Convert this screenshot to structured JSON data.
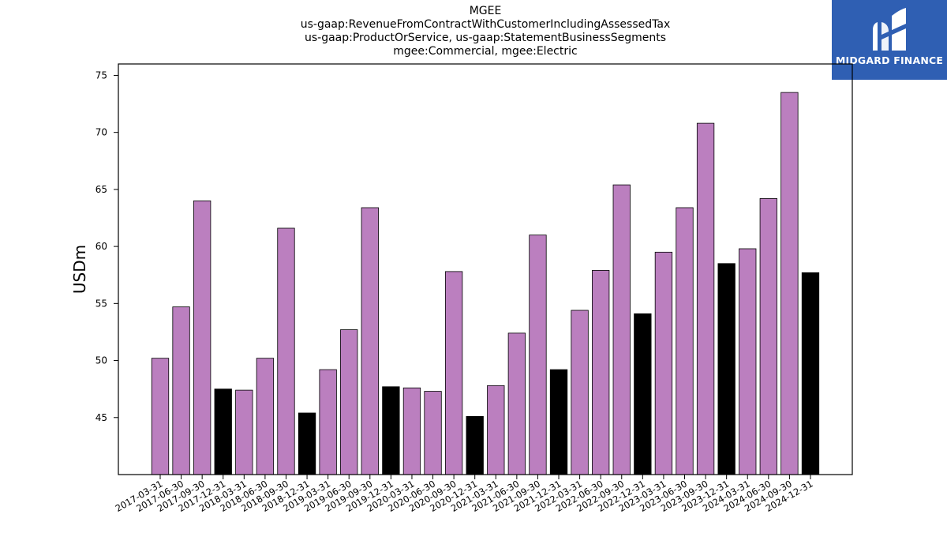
{
  "header": {
    "title_lines": [
      "MGEE",
      "us-gaap:RevenueFromContractWithCustomerIncludingAssessedTax",
      "us-gaap:ProductOrService, us-gaap:StatementBusinessSegments",
      "mgee:Commercial, mgee:Electric"
    ]
  },
  "logo": {
    "text": "MIDGARD FINANCE",
    "icon": "midgard-logo-icon",
    "background": "#2f5fb3"
  },
  "chart_data": {
    "type": "bar",
    "title": "MGEE\nus-gaap:RevenueFromContractWithCustomerIncludingAssessedTax\nus-gaap:ProductOrService, us-gaap:StatementBusinessSegments\nmgee:Commercial, mgee:Electric",
    "xlabel": "",
    "ylabel": "USDm",
    "ylim": [
      40,
      76
    ],
    "yticks": [
      45,
      50,
      55,
      60,
      65,
      70,
      75
    ],
    "grid": false,
    "colors": {
      "quarter": "#bb7fbf",
      "year_end": "#000000"
    },
    "categories": [
      "2017-03-31",
      "2017-06-30",
      "2017-09-30",
      "2017-12-31",
      "2018-03-31",
      "2018-06-30",
      "2018-09-30",
      "2018-12-31",
      "2019-03-31",
      "2019-06-30",
      "2019-09-30",
      "2019-12-31",
      "2020-03-31",
      "2020-06-30",
      "2020-09-30",
      "2020-12-31",
      "2021-03-31",
      "2021-06-30",
      "2021-09-30",
      "2021-12-31",
      "2022-03-31",
      "2022-06-30",
      "2022-09-30",
      "2022-12-31",
      "2023-03-31",
      "2023-06-30",
      "2023-09-30",
      "2023-12-31",
      "2024-03-31",
      "2024-06-30",
      "2024-09-30",
      "2024-12-31"
    ],
    "values": [
      50.2,
      54.7,
      64.0,
      47.5,
      47.4,
      50.2,
      61.6,
      45.4,
      49.2,
      52.7,
      63.4,
      47.7,
      47.6,
      47.3,
      57.8,
      45.1,
      47.8,
      52.4,
      61.0,
      49.2,
      54.4,
      57.9,
      65.4,
      54.1,
      59.5,
      63.4,
      70.8,
      58.5,
      59.8,
      64.2,
      73.5,
      57.7
    ]
  }
}
